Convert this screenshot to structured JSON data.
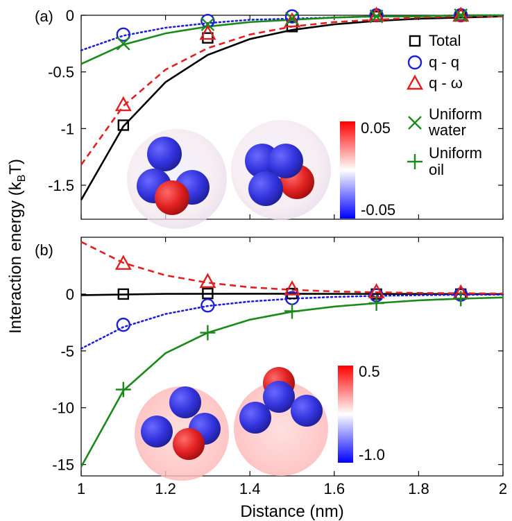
{
  "figure": {
    "ylabel_main": "Interaction energy (k",
    "ylabel_sub": "B",
    "ylabel_tail": "T)",
    "xlabel": "Distance (nm)"
  },
  "colors": {
    "total": "#000000",
    "qq": "#1f1fd6",
    "qw": "#e02020",
    "uniform": "#1a8a1a"
  },
  "chart_data": [
    {
      "panel_label": "(a)",
      "type": "scatter",
      "xlim": [
        1,
        2
      ],
      "ylim": [
        -1.8,
        0
      ],
      "x_ticks": [
        "1",
        "1.2",
        "1.4",
        "1.6",
        "1.8",
        "2"
      ],
      "x_tick_values": [
        1,
        1.2,
        1.4,
        1.6,
        1.8,
        2
      ],
      "y_ticks": [
        "0",
        "-0.5",
        "-1",
        "-1.5"
      ],
      "y_tick_values": [
        0,
        -0.5,
        -1,
        -1.5
      ],
      "legend": [
        "Total",
        "q - q",
        "q - ω",
        "Uniform water",
        "Uniform oil"
      ],
      "legend_lines": [
        [
          "Total"
        ],
        [
          "q - q"
        ],
        [
          "q - ω"
        ],
        [
          "Uniform",
          "water"
        ],
        [
          "Uniform",
          "oil"
        ]
      ],
      "colorbar": {
        "max_label": "0.05",
        "min_label": "-0.05"
      },
      "series": [
        {
          "name": "Total",
          "marker": "square",
          "color": "#000000",
          "curve": "solid",
          "x": [
            1.1,
            1.3,
            1.5,
            1.7,
            1.9
          ],
          "y": [
            -0.97,
            -0.2,
            -0.1,
            -0.01,
            0.0
          ],
          "curve_points": {
            "x": [
              1.0,
              1.1,
              1.2,
              1.3,
              1.4,
              1.5,
              1.6,
              1.7,
              1.8,
              1.9,
              2.0
            ],
            "y": [
              -1.63,
              -0.98,
              -0.59,
              -0.35,
              -0.21,
              -0.13,
              -0.08,
              -0.05,
              -0.03,
              -0.02,
              -0.01
            ]
          }
        },
        {
          "name": "q - q",
          "marker": "circle",
          "color": "#1f1fd6",
          "curve": "dotted",
          "x": [
            1.1,
            1.3,
            1.5,
            1.7,
            1.9
          ],
          "y": [
            -0.17,
            -0.05,
            -0.01,
            0.0,
            0.0
          ],
          "curve_points": {
            "x": [
              1.0,
              1.1,
              1.2,
              1.3,
              1.4,
              1.5,
              1.6,
              1.7,
              1.8,
              1.9,
              2.0
            ],
            "y": [
              -0.31,
              -0.18,
              -0.11,
              -0.07,
              -0.04,
              -0.03,
              -0.02,
              -0.01,
              -0.01,
              0.0,
              0.0
            ]
          }
        },
        {
          "name": "q - ω",
          "marker": "triangle",
          "color": "#e02020",
          "curve": "dashed",
          "x": [
            1.1,
            1.3,
            1.5,
            1.7,
            1.9
          ],
          "y": [
            -0.79,
            -0.16,
            -0.05,
            0.0,
            0.0
          ],
          "curve_points": {
            "x": [
              1.0,
              1.1,
              1.2,
              1.3,
              1.4,
              1.5,
              1.6,
              1.7,
              1.8,
              1.9,
              2.0
            ],
            "y": [
              -1.32,
              -0.8,
              -0.48,
              -0.29,
              -0.17,
              -0.1,
              -0.06,
              -0.04,
              -0.02,
              -0.01,
              -0.01
            ]
          }
        },
        {
          "name": "Uniform water",
          "marker": "x",
          "color": "#1a8a1a",
          "curve": "solid",
          "x": [
            1.1,
            1.3,
            1.5,
            1.7,
            1.9
          ],
          "y": [
            -0.25,
            -0.08,
            -0.03,
            -0.01,
            0.0
          ],
          "curve_points": {
            "x": [
              1.0,
              1.1,
              1.2,
              1.3,
              1.4,
              1.5,
              1.6,
              1.7,
              1.8,
              1.9,
              2.0
            ],
            "y": [
              -0.43,
              -0.26,
              -0.16,
              -0.1,
              -0.06,
              -0.04,
              -0.02,
              -0.01,
              -0.01,
              0.0,
              0.0
            ]
          }
        }
      ]
    },
    {
      "panel_label": "(b)",
      "type": "scatter",
      "xlim": [
        1,
        2
      ],
      "ylim": [
        -16,
        5
      ],
      "x_ticks": [
        "1",
        "1.2",
        "1.4",
        "1.6",
        "1.8",
        "2"
      ],
      "x_tick_values": [
        1,
        1.2,
        1.4,
        1.6,
        1.8,
        2
      ],
      "y_ticks": [
        "0",
        "-5",
        "-10",
        "-15"
      ],
      "y_tick_values": [
        0,
        -5,
        -10,
        -15
      ],
      "colorbar": {
        "max_label": "0.5",
        "min_label": "-1.0"
      },
      "series": [
        {
          "name": "Total",
          "marker": "square",
          "color": "#000000",
          "curve": "solid",
          "x": [
            1.1,
            1.3,
            1.5,
            1.7,
            1.9
          ],
          "y": [
            0.0,
            0.05,
            0.05,
            0.0,
            0.0
          ],
          "curve_points": {
            "x": [
              1.0,
              1.2,
              1.4,
              1.6,
              1.8,
              2.0
            ],
            "y": [
              -0.1,
              0.02,
              0.03,
              0.02,
              0.01,
              0.0
            ]
          }
        },
        {
          "name": "q - q",
          "marker": "circle",
          "color": "#1f1fd6",
          "curve": "dotted",
          "x": [
            1.1,
            1.3,
            1.5,
            1.7,
            1.9
          ],
          "y": [
            -2.7,
            -1.0,
            -0.35,
            -0.1,
            -0.05
          ],
          "curve_points": {
            "x": [
              1.0,
              1.1,
              1.2,
              1.3,
              1.4,
              1.5,
              1.6,
              1.7,
              1.8,
              1.9,
              2.0
            ],
            "y": [
              -4.8,
              -2.9,
              -1.75,
              -1.05,
              -0.65,
              -0.4,
              -0.25,
              -0.15,
              -0.1,
              -0.06,
              -0.04
            ]
          }
        },
        {
          "name": "q - ω",
          "marker": "triangle",
          "color": "#e02020",
          "curve": "dashed",
          "x": [
            1.1,
            1.3,
            1.5,
            1.7,
            1.9
          ],
          "y": [
            2.7,
            1.1,
            0.45,
            0.2,
            0.1
          ],
          "curve_points": {
            "x": [
              1.0,
              1.1,
              1.2,
              1.3,
              1.4,
              1.5,
              1.6,
              1.7,
              1.8,
              1.9,
              2.0
            ],
            "y": [
              4.6,
              2.75,
              1.65,
              1.0,
              0.6,
              0.37,
              0.23,
              0.15,
              0.1,
              0.07,
              0.05
            ]
          }
        },
        {
          "name": "Uniform oil",
          "marker": "plus",
          "color": "#1a8a1a",
          "curve": "solid",
          "x": [
            1.1,
            1.3,
            1.5,
            1.7,
            1.9
          ],
          "y": [
            -8.4,
            -3.4,
            -1.5,
            -0.8,
            -0.4
          ],
          "curve_points": {
            "x": [
              1.0,
              1.1,
              1.2,
              1.3,
              1.4,
              1.5,
              1.6,
              1.7,
              1.8,
              1.9,
              2.0
            ],
            "y": [
              -15.2,
              -8.5,
              -5.2,
              -3.4,
              -2.25,
              -1.55,
              -1.1,
              -0.8,
              -0.55,
              -0.4,
              -0.3
            ]
          }
        }
      ]
    }
  ]
}
